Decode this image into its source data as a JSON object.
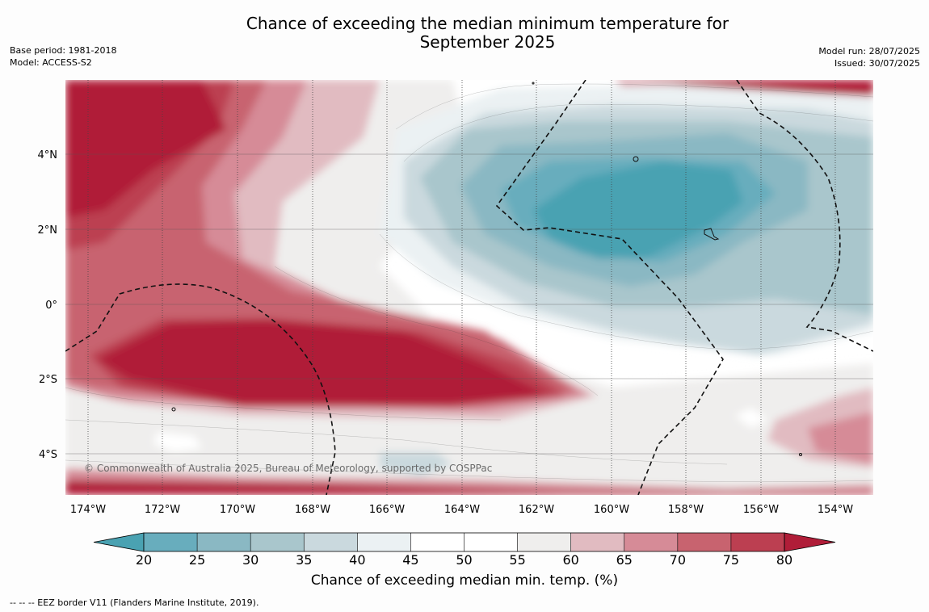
{
  "title_line1": "Chance of exceeding the median minimum temperature for",
  "title_line2": "September 2025",
  "base_period": "Base period: 1981-2018",
  "model": "Model: ACCESS-S2",
  "model_run": "Model run: 28/07/2025",
  "issued": "Issued: 30/07/2025",
  "copyright": "© Commonwealth of Australia 2025, Bureau of Meteorology, supported by COSPPac",
  "lat_labels": [
    "4°N",
    "2°N",
    "0°",
    "2°S",
    "4°S"
  ],
  "lon_labels": [
    "174°W",
    "172°W",
    "170°W",
    "168°W",
    "166°W",
    "164°W",
    "162°W",
    "160°W",
    "158°W",
    "156°W",
    "154°W"
  ],
  "colorbar": {
    "ticks": [
      "20",
      "25",
      "30",
      "35",
      "40",
      "45",
      "50",
      "55",
      "60",
      "65",
      "70",
      "75",
      "80"
    ],
    "colors": [
      "#4aa2b2",
      "#68adbd",
      "#8ab8c3",
      "#a9c6cc",
      "#cad9de",
      "#ebf1f3",
      "#ffffff",
      "#ffffff",
      "#efeeed",
      "#e1bbc1",
      "#d68b97",
      "#c8636f",
      "#bc3f51",
      "#b01d38"
    ],
    "label": "Chance of exceeding median min. temp. (%)"
  },
  "footnote": "--  --  -- EEZ border V11 (Flanders Marine Institute, 2019)."
}
